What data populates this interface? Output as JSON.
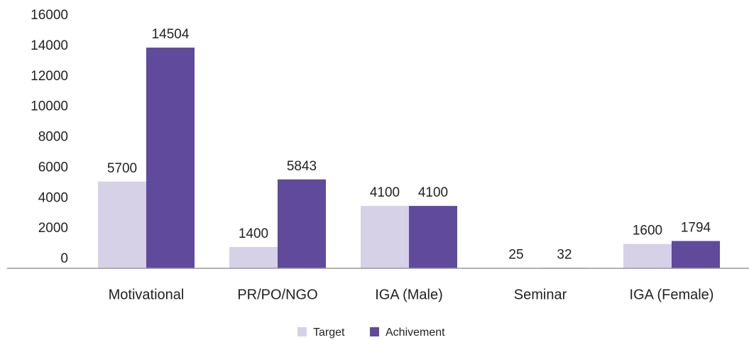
{
  "chart_data": {
    "type": "bar",
    "categories": [
      "Motivational",
      "PR/PO/NGO",
      "IGA (Male)",
      "Seminar",
      "IGA (Female)"
    ],
    "series": [
      {
        "name": "Target",
        "color": "#d6d1e7",
        "values": [
          5700,
          1400,
          4100,
          25,
          1600
        ]
      },
      {
        "name": "Achivement",
        "color": "#5f4a9c",
        "values": [
          14504,
          5843,
          4100,
          32,
          1794
        ]
      }
    ],
    "ylim": [
      0,
      16000
    ],
    "yticks": [
      0,
      2000,
      4000,
      6000,
      8000,
      10000,
      12000,
      14000,
      16000
    ],
    "grid": false,
    "legend": "bottom"
  }
}
